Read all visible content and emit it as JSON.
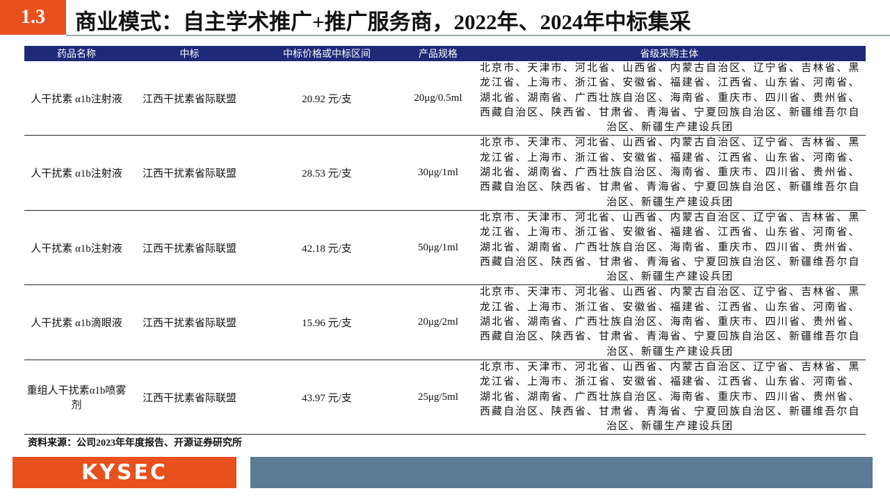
{
  "header": {
    "section": "1.3",
    "title": "商业模式：自主学术推广+推广服务商，2022年、2024年中标集采"
  },
  "table": {
    "columns": [
      "药品名称",
      "中标",
      "中标价格或中标区间",
      "产品规格",
      "省级采购主体"
    ],
    "rows": [
      [
        "人干扰素 α1b注射液",
        "江西干扰素省际联盟",
        "20.92 元/支",
        "20μg/0.5ml",
        "北京市、天津市、河北省、山西省、内蒙古自治区、辽宁省、吉林省、黑龙江省、上海市、浙江省、安徽省、福建省、江西省、山东省、河南省、湖北省、湖南省、广西壮族自治区、海南省、重庆市、四川省、贵州省、西藏自治区、陕西省、甘肃省、青海省、宁夏回族自治区、新疆维吾尔自治区、新疆生产建设兵团"
      ],
      [
        "人干扰素 α1b注射液",
        "江西干扰素省际联盟",
        "28.53 元/支",
        "30μg/1ml",
        "北京市、天津市、河北省、山西省、内蒙古自治区、辽宁省、吉林省、黑龙江省、上海市、浙江省、安徽省、福建省、江西省、山东省、河南省、湖北省、湖南省、广西壮族自治区、海南省、重庆市、四川省、贵州省、西藏自治区、陕西省、甘肃省、青海省、宁夏回族自治区、新疆维吾尔自治区、新疆生产建设兵团"
      ],
      [
        "人干扰素 α1b注射液",
        "江西干扰素省际联盟",
        "42.18 元/支",
        "50μg/1ml",
        "北京市、天津市、河北省、山西省、内蒙古自治区、辽宁省、吉林省、黑龙江省、上海市、浙江省、安徽省、福建省、江西省、山东省、河南省、湖北省、湖南省、广西壮族自治区、海南省、重庆市、四川省、贵州省、西藏自治区、陕西省、甘肃省、青海省、宁夏回族自治区、新疆维吾尔自治区、新疆生产建设兵团"
      ],
      [
        "人干扰素 α1b滴眼液",
        "江西干扰素省际联盟",
        "15.96 元/支",
        "20μg/2ml",
        "北京市、天津市、河北省、山西省、内蒙古自治区、辽宁省、吉林省、黑龙江省、上海市、浙江省、安徽省、福建省、江西省、山东省、河南省、湖北省、湖南省、广西壮族自治区、海南省、重庆市、四川省、贵州省、西藏自治区、陕西省、甘肃省、青海省、宁夏回族自治区、新疆维吾尔自治区、新疆生产建设兵团"
      ],
      [
        "重组人干扰素α1b喷雾剂",
        "江西干扰素省际联盟",
        "43.97 元/支",
        "25μg/5ml",
        "北京市、天津市、河北省、山西省、内蒙古自治区、辽宁省、吉林省、黑龙江省、上海市、浙江省、安徽省、福建省、江西省、山东省、河南省、湖北省、湖南省、广西壮族自治区、海南省、重庆市、四川省、贵州省、西藏自治区、陕西省、甘肃省、青海省、宁夏回族自治区、新疆维吾尔自治区、新疆生产建设兵团"
      ]
    ]
  },
  "source": "资料来源：公司2023年年度报告、开源证券研究所",
  "footer": {
    "logo": "KYSEC"
  }
}
